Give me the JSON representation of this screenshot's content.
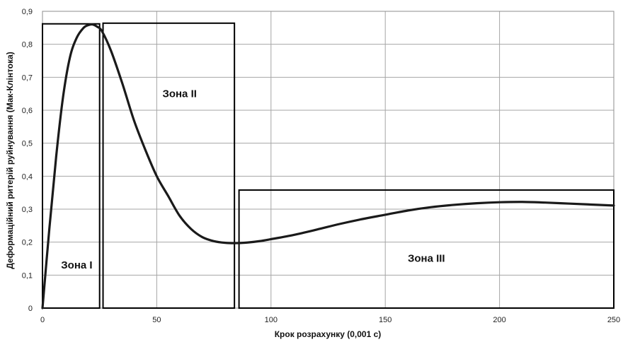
{
  "chart_data": {
    "type": "line",
    "title": "",
    "xlabel": "Крок розрахунку (0,001 с)",
    "ylabel": "Деформаційний ритерій руйнування  (Мак-Клінтока)",
    "xlim": [
      0,
      250
    ],
    "ylim": [
      0,
      0.9
    ],
    "x_ticks": [
      "0",
      "50",
      "100",
      "150",
      "200",
      "250"
    ],
    "y_ticks": [
      "0",
      "0,1",
      "0,2",
      "0,3",
      "0,4",
      "0,5",
      "0,6",
      "0,7",
      "0,8",
      "0,9"
    ],
    "grid": true,
    "series": [
      {
        "x": [
          0,
          3,
          6,
          9,
          12,
          15,
          18,
          20,
          22,
          24,
          26,
          30,
          35,
          40,
          45,
          50,
          55,
          60,
          65,
          70,
          75,
          80,
          85,
          90,
          95,
          100,
          110,
          120,
          130,
          140,
          150,
          160,
          170,
          180,
          190,
          200,
          210,
          220,
          230,
          240,
          250
        ],
        "y": [
          0.0,
          0.24,
          0.46,
          0.64,
          0.76,
          0.82,
          0.85,
          0.858,
          0.86,
          0.853,
          0.84,
          0.78,
          0.68,
          0.57,
          0.48,
          0.4,
          0.34,
          0.28,
          0.24,
          0.215,
          0.203,
          0.198,
          0.197,
          0.199,
          0.203,
          0.209,
          0.222,
          0.238,
          0.255,
          0.27,
          0.283,
          0.296,
          0.306,
          0.313,
          0.318,
          0.321,
          0.322,
          0.32,
          0.317,
          0.314,
          0.311
        ],
        "color": "#1a1a1a"
      }
    ],
    "zones": [
      {
        "label": "Зона I",
        "x0": 0,
        "x1": 25,
        "y0": 0,
        "y1": 0.862,
        "label_x": 15,
        "label_y": 0.12
      },
      {
        "label": "Зона II",
        "x0": 26.5,
        "x1": 84,
        "y0": 0,
        "y1": 0.864,
        "label_x": 60,
        "label_y": 0.64
      },
      {
        "label": "Зона III",
        "x0": 86,
        "x1": 250,
        "y0": 0,
        "y1": 0.358,
        "label_x": 168,
        "label_y": 0.14
      }
    ]
  }
}
